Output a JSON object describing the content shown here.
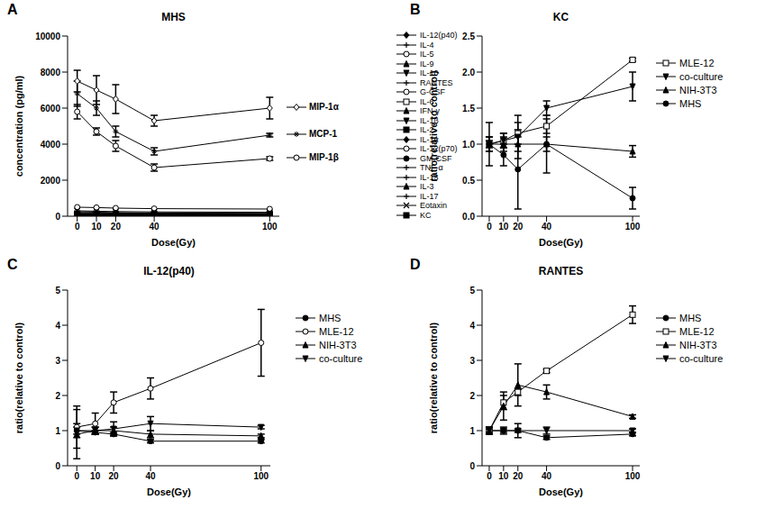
{
  "chart_data": [
    {
      "type": "line",
      "annotations": [
        "A"
      ],
      "title": "MHS",
      "xlabel": "Dose(Gy)",
      "ylabel": "concentration (pg/ml)",
      "x": [
        0,
        10,
        20,
        40,
        100
      ],
      "xlim": [
        -5,
        105
      ],
      "xticks": [
        0,
        10,
        20,
        40,
        100
      ],
      "ylim": [
        0,
        10000
      ],
      "yticks": [
        0,
        2000,
        4000,
        6000,
        8000,
        10000
      ],
      "series": [
        {
          "name": "MIP-1α",
          "color": "#000000",
          "marker": "open_diamond",
          "values": [
            7500,
            7000,
            6500,
            5300,
            6000
          ],
          "errors": [
            600,
            800,
            800,
            300,
            600
          ]
        },
        {
          "name": "MCP-1",
          "color": "#000000",
          "marker": "star",
          "values": [
            6800,
            6000,
            4700,
            3600,
            4500
          ],
          "errors": [
            700,
            400,
            300,
            200,
            100
          ]
        },
        {
          "name": "MIP-1β",
          "color": "#000000",
          "marker": "open_circle",
          "values": [
            5800,
            4700,
            3900,
            2700,
            3200
          ],
          "errors": [
            400,
            200,
            300,
            200,
            100
          ]
        },
        {
          "name": "IL-12(p40)",
          "color": "#000000",
          "marker": "diamond",
          "values": [
            150,
            140,
            130,
            120,
            100
          ]
        },
        {
          "name": "IL-4",
          "color": "#000000",
          "marker": "plus",
          "values": [
            20,
            20,
            20,
            20,
            20
          ]
        },
        {
          "name": "IL-5",
          "color": "#000000",
          "marker": "open_circle",
          "values": [
            30,
            30,
            30,
            30,
            30
          ]
        },
        {
          "name": "IL-9",
          "color": "#000000",
          "marker": "triangle",
          "values": [
            100,
            100,
            100,
            90,
            90
          ]
        },
        {
          "name": "IL-10",
          "color": "#000000",
          "marker": "triangle_down",
          "values": [
            50,
            50,
            50,
            50,
            50
          ]
        },
        {
          "name": "RANTES",
          "color": "#000000",
          "marker": "plus",
          "values": [
            200,
            190,
            180,
            160,
            150
          ]
        },
        {
          "name": "G-CSF",
          "color": "#000000",
          "marker": "open_circle",
          "values": [
            500,
            480,
            450,
            420,
            400
          ]
        },
        {
          "name": "IL-6",
          "color": "#000000",
          "marker": "open_square",
          "values": [
            60,
            60,
            60,
            60,
            60
          ]
        },
        {
          "name": "IFN-γ",
          "color": "#000000",
          "marker": "triangle",
          "values": [
            40,
            40,
            40,
            40,
            40
          ]
        },
        {
          "name": "IL-1β",
          "color": "#000000",
          "marker": "triangle_down",
          "values": [
            80,
            80,
            80,
            80,
            80
          ]
        },
        {
          "name": "IL-2",
          "color": "#000000",
          "marker": "square",
          "values": [
            30,
            30,
            30,
            30,
            30
          ]
        },
        {
          "name": "IL-1α",
          "color": "#000000",
          "marker": "diamond",
          "values": [
            120,
            120,
            110,
            110,
            100
          ]
        },
        {
          "name": "IL-12(p70)",
          "color": "#000000",
          "marker": "open_circle",
          "values": [
            90,
            90,
            90,
            90,
            90
          ]
        },
        {
          "name": "GM-CSF",
          "color": "#000000",
          "marker": "circle",
          "values": [
            40,
            40,
            40,
            40,
            40
          ]
        },
        {
          "name": "TNF-α",
          "color": "#000000",
          "marker": "plus",
          "values": [
            250,
            230,
            200,
            180,
            150
          ]
        },
        {
          "name": "IL-13",
          "color": "#000000",
          "marker": "plus",
          "values": [
            100,
            100,
            100,
            100,
            100
          ]
        },
        {
          "name": "IL-3",
          "color": "#000000",
          "marker": "triangle",
          "values": [
            20,
            20,
            20,
            20,
            20
          ]
        },
        {
          "name": "IL-17",
          "color": "#000000",
          "marker": "plus",
          "values": [
            30,
            30,
            30,
            30,
            30
          ]
        },
        {
          "name": "Eotaxin",
          "color": "#000000",
          "marker": "cross",
          "values": [
            300,
            280,
            260,
            240,
            220
          ]
        },
        {
          "name": "KC",
          "color": "#000000",
          "marker": "square",
          "values": [
            150,
            150,
            140,
            140,
            130
          ]
        }
      ]
    },
    {
      "type": "line",
      "annotations": [
        "B"
      ],
      "title": "KC",
      "xlabel": "Dose(Gy)",
      "ylabel": "ratio(relative to control)",
      "x": [
        0,
        10,
        20,
        40,
        100
      ],
      "xlim": [
        -5,
        105
      ],
      "xticks": [
        0,
        10,
        20,
        40,
        100
      ],
      "ylim": [
        0,
        2.5
      ],
      "yticks": [
        {
          "value": 0,
          "label": "0.0"
        },
        {
          "value": 0.5,
          "label": "0.5"
        },
        {
          "value": 1,
          "label": "1.0"
        },
        {
          "value": 1.5,
          "label": "1.5"
        },
        {
          "value": 2,
          "label": "2.0"
        },
        {
          "value": 2.5,
          "label": "2.5"
        }
      ],
      "series": [
        {
          "name": "MLE-12",
          "color": "#000000",
          "marker": "open_square",
          "values": [
            1.0,
            1.05,
            1.15,
            1.25,
            2.17
          ],
          "errors": [
            0.05,
            0.1,
            0.15,
            0.1,
            0.02
          ]
        },
        {
          "name": "co-culture",
          "color": "#000000",
          "marker": "triangle_down",
          "values": [
            1.0,
            1.05,
            1.1,
            1.5,
            1.8
          ],
          "errors": [
            0.1,
            0.1,
            0.3,
            0.1,
            0.2
          ]
        },
        {
          "name": "NIH-3T3",
          "color": "#000000",
          "marker": "triangle",
          "values": [
            1.0,
            1.0,
            1.0,
            1.0,
            0.9
          ],
          "errors": [
            0.1,
            0.1,
            0.1,
            0.1,
            0.08
          ]
        },
        {
          "name": "MHS",
          "color": "#000000",
          "marker": "circle",
          "values": [
            1.0,
            0.85,
            0.65,
            1.0,
            0.25
          ],
          "errors": [
            0.3,
            0.15,
            0.55,
            0.4,
            0.15
          ]
        }
      ]
    },
    {
      "type": "line",
      "annotations": [
        "C"
      ],
      "title": "IL-12(p40)",
      "xlabel": "Dose(Gy)",
      "ylabel": "ratio(relative to control)",
      "x": [
        0,
        10,
        20,
        40,
        100
      ],
      "xlim": [
        -5,
        105
      ],
      "xticks": [
        0,
        10,
        20,
        40,
        100
      ],
      "ylim": [
        0,
        5
      ],
      "yticks": [
        0,
        1,
        2,
        3,
        4,
        5
      ],
      "series": [
        {
          "name": "MHS",
          "color": "#000000",
          "marker": "circle",
          "values": [
            1.0,
            0.95,
            0.9,
            0.7,
            0.7
          ],
          "errors": [
            0.1,
            0.05,
            0.05,
            0.05,
            0.05
          ]
        },
        {
          "name": "MLE-12",
          "color": "#000000",
          "marker": "open_circle",
          "values": [
            1.1,
            1.2,
            1.8,
            2.2,
            3.5
          ],
          "errors": [
            0.6,
            0.3,
            0.3,
            0.3,
            0.95
          ]
        },
        {
          "name": "NIH-3T3",
          "color": "#000000",
          "marker": "triangle",
          "values": [
            0.9,
            1.0,
            1.0,
            0.9,
            0.85
          ],
          "errors": [
            0.7,
            0.1,
            0.1,
            0.1,
            0.05
          ]
        },
        {
          "name": "co-culture",
          "color": "#000000",
          "marker": "triangle_down",
          "values": [
            1.0,
            1.0,
            1.05,
            1.2,
            1.1
          ],
          "errors": [
            0.2,
            0.1,
            0.2,
            0.2,
            0.05
          ]
        }
      ]
    },
    {
      "type": "line",
      "annotations": [
        "D"
      ],
      "title": "RANTES",
      "xlabel": "Dose(Gy)",
      "ylabel": "ratio(relative to control)",
      "x": [
        0,
        10,
        20,
        40,
        100
      ],
      "xlim": [
        -5,
        105
      ],
      "xticks": [
        0,
        10,
        20,
        40,
        100
      ],
      "ylim": [
        0,
        5
      ],
      "yticks": [
        0,
        1,
        2,
        3,
        4,
        5
      ],
      "series": [
        {
          "name": "MHS",
          "color": "#000000",
          "marker": "circle",
          "values": [
            1.0,
            1.0,
            1.0,
            0.8,
            0.9
          ],
          "errors": [
            0.05,
            0.05,
            0.05,
            0.05,
            0.05
          ]
        },
        {
          "name": "MLE-12",
          "color": "#000000",
          "marker": "open_square",
          "values": [
            1.0,
            1.8,
            2.1,
            2.7,
            4.3
          ],
          "errors": [
            0.1,
            0.2,
            0.1,
            0.05,
            0.25
          ]
        },
        {
          "name": "NIH-3T3",
          "color": "#000000",
          "marker": "triangle",
          "values": [
            1.0,
            1.7,
            2.3,
            2.1,
            1.4
          ],
          "errors": [
            0.1,
            0.4,
            0.6,
            0.2,
            0.05
          ]
        },
        {
          "name": "co-culture",
          "color": "#000000",
          "marker": "triangle_down",
          "values": [
            1.0,
            1.0,
            1.0,
            1.0,
            1.0
          ],
          "errors": [
            0.1,
            0.1,
            0.2,
            0.1,
            0.05
          ]
        }
      ]
    }
  ]
}
